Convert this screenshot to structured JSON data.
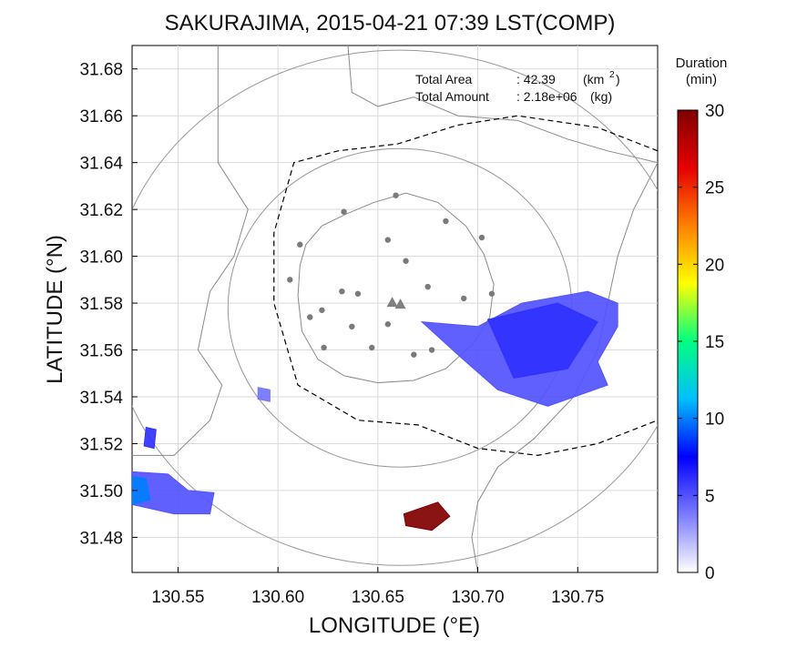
{
  "chart_data": {
    "type": "heatmap",
    "title": "SAKURAJIMA, 2015-04-21 07:39 LST(COMP)",
    "xlabel": "LONGITUDE (°E)",
    "ylabel": "LATITUDE (°N)",
    "xlim": [
      130.527,
      130.79
    ],
    "ylim": [
      31.465,
      31.69
    ],
    "xticks": [
      130.55,
      130.6,
      130.65,
      130.7,
      130.75
    ],
    "xtick_labels": [
      "130.55",
      "130.60",
      "130.65",
      "130.70",
      "130.75"
    ],
    "yticks": [
      31.48,
      31.5,
      31.52,
      31.54,
      31.56,
      31.58,
      31.6,
      31.62,
      31.64,
      31.66,
      31.68
    ],
    "ytick_labels": [
      "31.48",
      "31.50",
      "31.52",
      "31.54",
      "31.56",
      "31.58",
      "31.60",
      "31.62",
      "31.64",
      "31.66",
      "31.68"
    ],
    "grid": true,
    "annotations": {
      "area_label": "Total Area",
      "area_value": ": 42.39",
      "area_unit": "(km",
      "area_unit_sup": "2",
      "area_unit_close": ")",
      "amount_label": "Total Amount",
      "amount_value": ": 2.18e+06",
      "amount_unit": "(kg)"
    },
    "colorbar": {
      "title_line1": "Duration",
      "title_line2": "(min)",
      "min": 0,
      "max": 30,
      "ticks": [
        0,
        5,
        10,
        15,
        20,
        25,
        30
      ],
      "tick_labels": [
        "0",
        "5",
        "10",
        "15",
        "20",
        "25",
        "30"
      ],
      "colors": [
        "#ffffff",
        "#7b7bff",
        "#0000ff",
        "#00bfff",
        "#00ff80",
        "#ffff00",
        "#ff8000",
        "#e60000",
        "#800000"
      ]
    },
    "vent": {
      "lon": 130.659,
      "lat": 31.58
    },
    "stations": [
      [
        130.659,
        31.626
      ],
      [
        130.633,
        31.619
      ],
      [
        130.684,
        31.615
      ],
      [
        130.611,
        31.605
      ],
      [
        130.655,
        31.607
      ],
      [
        130.702,
        31.608
      ],
      [
        130.606,
        31.59
      ],
      [
        130.632,
        31.585
      ],
      [
        130.622,
        31.577
      ],
      [
        130.64,
        31.584
      ],
      [
        130.664,
        31.598
      ],
      [
        130.675,
        31.587
      ],
      [
        130.693,
        31.582
      ],
      [
        130.707,
        31.584
      ],
      [
        130.616,
        31.574
      ],
      [
        130.655,
        31.571
      ],
      [
        130.637,
        31.57
      ],
      [
        130.623,
        31.561
      ],
      [
        130.647,
        31.561
      ],
      [
        130.668,
        31.558
      ],
      [
        130.677,
        31.56
      ]
    ],
    "range_circles": [
      {
        "center": [
          130.661,
          31.578
        ],
        "radius_lon": 0.086,
        "radius_lat": 0.068
      },
      {
        "center": [
          130.661,
          31.578
        ],
        "radius_lon": 0.145,
        "radius_lat": 0.11
      },
      {
        "center": [
          130.661,
          31.578
        ],
        "radius_lon": 0.195,
        "radius_lat": 0.16
      }
    ],
    "ash_regions": [
      {
        "name": "east-plume",
        "polygon": [
          [
            130.672,
            31.572
          ],
          [
            130.7,
            31.57
          ],
          [
            130.722,
            31.58
          ],
          [
            130.755,
            31.585
          ],
          [
            130.77,
            31.58
          ],
          [
            130.77,
            31.57
          ],
          [
            130.76,
            31.555
          ],
          [
            130.765,
            31.545
          ],
          [
            130.735,
            31.536
          ],
          [
            130.71,
            31.543
          ],
          [
            130.69,
            31.558
          ]
        ],
        "duration": 5
      },
      {
        "name": "east-plume-core",
        "polygon": [
          [
            130.705,
            31.573
          ],
          [
            130.74,
            31.58
          ],
          [
            130.76,
            31.572
          ],
          [
            130.745,
            31.552
          ],
          [
            130.718,
            31.548
          ]
        ],
        "duration": 6
      },
      {
        "name": "south-vent-sector",
        "polygon": [
          [
            130.663,
            31.49
          ],
          [
            130.68,
            31.495
          ],
          [
            130.686,
            31.489
          ],
          [
            130.677,
            31.483
          ],
          [
            130.664,
            31.485
          ]
        ],
        "duration": 30
      },
      {
        "name": "southwest-cluster",
        "polygon": [
          [
            130.527,
            31.508
          ],
          [
            130.545,
            31.507
          ],
          [
            130.555,
            31.5
          ],
          [
            130.568,
            31.499
          ],
          [
            130.566,
            31.49
          ],
          [
            130.548,
            31.49
          ],
          [
            130.527,
            31.494
          ]
        ],
        "duration": 5
      },
      {
        "name": "southwest-hotspot",
        "polygon": [
          [
            130.527,
            31.506
          ],
          [
            130.534,
            31.505
          ],
          [
            130.536,
            31.496
          ],
          [
            130.527,
            31.494
          ]
        ],
        "duration": 10
      },
      {
        "name": "west-small",
        "polygon": [
          [
            130.534,
            31.527
          ],
          [
            130.539,
            31.526
          ],
          [
            130.538,
            31.518
          ],
          [
            130.533,
            31.519
          ]
        ],
        "duration": 6
      },
      {
        "name": "west-speck",
        "polygon": [
          [
            130.59,
            31.544
          ],
          [
            130.596,
            31.543
          ],
          [
            130.596,
            31.538
          ],
          [
            130.59,
            31.539
          ]
        ],
        "duration": 4
      }
    ]
  }
}
